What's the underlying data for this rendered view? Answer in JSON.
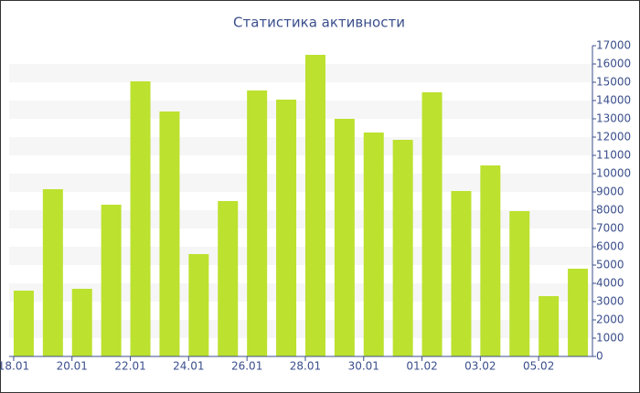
{
  "chart_data": {
    "type": "bar",
    "title": "Статистика активности",
    "categories": [
      "18.01",
      null,
      "20.01",
      null,
      "22.01",
      null,
      "24.01",
      null,
      "26.01",
      null,
      "28.01",
      null,
      "30.01",
      null,
      "01.02",
      null,
      "03.02",
      null,
      "05.02",
      null
    ],
    "values": [
      3600,
      9150,
      3700,
      8300,
      15050,
      13400,
      5600,
      8500,
      14550,
      14050,
      16500,
      13000,
      12250,
      11850,
      14450,
      9050,
      10450,
      7950,
      3300,
      4800
    ],
    "color": "#bce12f",
    "ylim": [
      0,
      17000
    ],
    "yticks": [
      0,
      1000,
      2000,
      3000,
      4000,
      5000,
      6000,
      7000,
      8000,
      9000,
      10000,
      11000,
      12000,
      13000,
      14000,
      15000,
      16000,
      17000
    ],
    "grid": true
  }
}
